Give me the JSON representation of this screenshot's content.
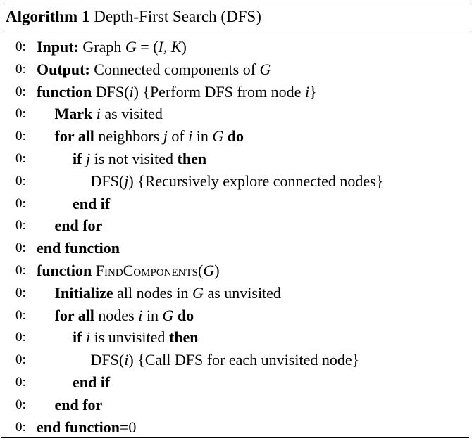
{
  "caption": {
    "label": "Algorithm 1",
    "title": "Depth-First Search (DFS)"
  },
  "lines": [
    {
      "num": "0:",
      "parts": [
        [
          "kw",
          "Input:"
        ],
        [
          "t",
          " Graph "
        ],
        [
          "m",
          "G"
        ],
        [
          "t",
          " = ("
        ],
        [
          "m",
          "I, K"
        ],
        [
          "t",
          ")"
        ]
      ]
    },
    {
      "num": "0:",
      "parts": [
        [
          "kw",
          "Output:"
        ],
        [
          "t",
          " Connected components of "
        ],
        [
          "m",
          "G"
        ]
      ]
    },
    {
      "num": "0:",
      "parts": [
        [
          "kw",
          "function"
        ],
        [
          "t",
          " DFS("
        ],
        [
          "m",
          "i"
        ],
        [
          "t",
          ") {Perform DFS from node "
        ],
        [
          "m",
          "i"
        ],
        [
          "t",
          "}"
        ]
      ]
    },
    {
      "num": "0:",
      "parts": [
        [
          "kw",
          "Mark"
        ],
        [
          "t",
          " "
        ],
        [
          "m",
          "i"
        ],
        [
          "t",
          " as visited"
        ]
      ]
    },
    {
      "num": "0:",
      "parts": [
        [
          "kw",
          "for all"
        ],
        [
          "t",
          " neighbors "
        ],
        [
          "m",
          "j"
        ],
        [
          "t",
          " of "
        ],
        [
          "m",
          "i"
        ],
        [
          "t",
          " in "
        ],
        [
          "m",
          "G"
        ],
        [
          "t",
          " "
        ],
        [
          "kw",
          "do"
        ]
      ]
    },
    {
      "num": "0:",
      "parts": [
        [
          "kw",
          "if"
        ],
        [
          "t",
          " "
        ],
        [
          "m",
          "j"
        ],
        [
          "t",
          " is not visited "
        ],
        [
          "kw",
          "then"
        ]
      ]
    },
    {
      "num": "0:",
      "parts": [
        [
          "t",
          "DFS("
        ],
        [
          "m",
          "j"
        ],
        [
          "t",
          ") {Recursively explore connected nodes}"
        ]
      ]
    },
    {
      "num": "0:",
      "parts": [
        [
          "kw",
          "end if"
        ]
      ]
    },
    {
      "num": "0:",
      "parts": [
        [
          "kw",
          "end for"
        ]
      ]
    },
    {
      "num": "0:",
      "parts": [
        [
          "kw",
          "end function"
        ]
      ]
    },
    {
      "num": "0:",
      "parts": [
        [
          "kw",
          "function"
        ],
        [
          "t",
          " "
        ],
        [
          "sc",
          "FindComponents"
        ],
        [
          "t",
          "("
        ],
        [
          "m",
          "G"
        ],
        [
          "t",
          ")"
        ]
      ]
    },
    {
      "num": "0:",
      "parts": [
        [
          "kw",
          "Initialize"
        ],
        [
          "t",
          " all nodes in "
        ],
        [
          "m",
          "G"
        ],
        [
          "t",
          " as unvisited"
        ]
      ]
    },
    {
      "num": "0:",
      "parts": [
        [
          "kw",
          "for all"
        ],
        [
          "t",
          " nodes "
        ],
        [
          "m",
          "i"
        ],
        [
          "t",
          " in "
        ],
        [
          "m",
          "G"
        ],
        [
          "t",
          " "
        ],
        [
          "kw",
          "do"
        ]
      ]
    },
    {
      "num": "0:",
      "parts": [
        [
          "kw",
          "if"
        ],
        [
          "t",
          " "
        ],
        [
          "m",
          "i"
        ],
        [
          "t",
          " is unvisited "
        ],
        [
          "kw",
          "then"
        ]
      ]
    },
    {
      "num": "0:",
      "parts": [
        [
          "t",
          "DFS("
        ],
        [
          "m",
          "i"
        ],
        [
          "t",
          ") {Call DFS for each unvisited node}"
        ]
      ]
    },
    {
      "num": "0:",
      "parts": [
        [
          "kw",
          "end if"
        ]
      ]
    },
    {
      "num": "0:",
      "parts": [
        [
          "kw",
          "end for"
        ]
      ]
    },
    {
      "num": "0:",
      "parts": [
        [
          "kw",
          "end function"
        ],
        [
          "t",
          "=0"
        ]
      ]
    }
  ]
}
